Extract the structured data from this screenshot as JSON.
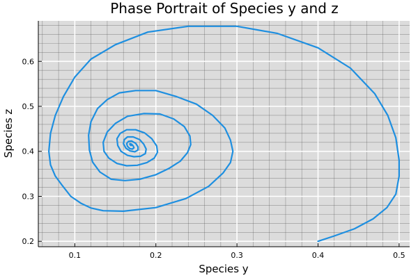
{
  "chart_data": {
    "type": "line",
    "title": "Phase Portrait of Species y and z",
    "xlabel": "Species y",
    "ylabel": "Species z",
    "xlim": [
      0.055,
      0.513
    ],
    "ylim": [
      0.188,
      0.69
    ],
    "xticks": [
      0.1,
      0.2,
      0.3,
      0.4,
      0.5
    ],
    "yticks": [
      0.2,
      0.3,
      0.4,
      0.5,
      0.6
    ],
    "grid": true,
    "minor_grid": true,
    "legend": "none",
    "colors": {
      "plot_bg": "#dcdcdc",
      "line": "#1e8fe0",
      "major_grid": "#ffffff",
      "minor_grid": "#555555"
    },
    "series": [
      {
        "x": [
          0.4,
          0.42,
          0.445,
          0.468,
          0.485,
          0.496,
          0.5,
          0.5,
          0.496,
          0.486,
          0.47,
          0.44,
          0.4,
          0.35,
          0.3,
          0.24,
          0.19,
          0.15,
          0.12,
          0.1,
          0.086,
          0.076,
          0.07,
          0.068,
          0.07,
          0.076,
          0.085,
          0.095,
          0.108,
          0.12,
          0.135,
          0.16,
          0.2,
          0.237,
          0.265,
          0.283,
          0.292,
          0.295,
          0.292,
          0.285,
          0.27,
          0.25,
          0.225,
          0.2,
          0.175,
          0.155,
          0.14,
          0.128,
          0.12,
          0.117,
          0.118,
          0.122,
          0.131,
          0.145,
          0.162,
          0.18,
          0.2,
          0.216,
          0.23,
          0.239,
          0.243,
          0.242,
          0.235,
          0.222,
          0.205,
          0.185,
          0.165,
          0.15,
          0.14,
          0.135,
          0.136,
          0.142,
          0.152,
          0.164,
          0.177,
          0.189,
          0.198,
          0.202,
          0.201,
          0.195,
          0.186,
          0.175,
          0.164,
          0.156,
          0.152,
          0.153,
          0.157,
          0.165,
          0.173,
          0.181,
          0.187,
          0.188,
          0.185,
          0.18,
          0.172,
          0.165,
          0.161,
          0.16,
          0.163,
          0.168,
          0.174,
          0.178,
          0.178,
          0.175,
          0.17,
          0.166,
          0.164,
          0.165,
          0.168,
          0.171,
          0.173,
          0.172,
          0.17,
          0.168,
          0.168,
          0.169,
          0.17
        ],
        "y": [
          0.2,
          0.212,
          0.228,
          0.25,
          0.275,
          0.305,
          0.345,
          0.38,
          0.43,
          0.48,
          0.528,
          0.585,
          0.63,
          0.662,
          0.678,
          0.678,
          0.665,
          0.637,
          0.605,
          0.565,
          0.522,
          0.48,
          0.44,
          0.4,
          0.37,
          0.345,
          0.323,
          0.3,
          0.284,
          0.274,
          0.268,
          0.267,
          0.275,
          0.295,
          0.322,
          0.352,
          0.375,
          0.4,
          0.425,
          0.452,
          0.48,
          0.505,
          0.522,
          0.535,
          0.535,
          0.53,
          0.515,
          0.495,
          0.466,
          0.436,
          0.403,
          0.376,
          0.354,
          0.338,
          0.335,
          0.338,
          0.348,
          0.362,
          0.378,
          0.397,
          0.415,
          0.434,
          0.455,
          0.472,
          0.483,
          0.484,
          0.478,
          0.462,
          0.443,
          0.42,
          0.4,
          0.385,
          0.373,
          0.368,
          0.369,
          0.375,
          0.385,
          0.398,
          0.412,
          0.428,
          0.441,
          0.448,
          0.448,
          0.44,
          0.428,
          0.413,
          0.4,
          0.391,
          0.388,
          0.389,
          0.395,
          0.405,
          0.416,
          0.426,
          0.432,
          0.432,
          0.426,
          0.417,
          0.407,
          0.401,
          0.399,
          0.403,
          0.41,
          0.418,
          0.423,
          0.422,
          0.417,
          0.411,
          0.406,
          0.405,
          0.408,
          0.412,
          0.416,
          0.417,
          0.415,
          0.413,
          0.413
        ]
      }
    ]
  }
}
